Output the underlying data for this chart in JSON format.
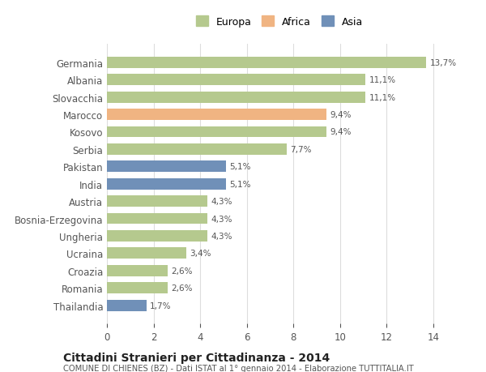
{
  "categories": [
    "Germania",
    "Albania",
    "Slovacchia",
    "Marocco",
    "Kosovo",
    "Serbia",
    "Pakistan",
    "India",
    "Austria",
    "Bosnia-Erzegovina",
    "Ungheria",
    "Ucraina",
    "Croazia",
    "Romania",
    "Thailandia"
  ],
  "values": [
    13.7,
    11.1,
    11.1,
    9.4,
    9.4,
    7.7,
    5.1,
    5.1,
    4.3,
    4.3,
    4.3,
    3.4,
    2.6,
    2.6,
    1.7
  ],
  "labels": [
    "13,7%",
    "11,1%",
    "11,1%",
    "9,4%",
    "9,4%",
    "7,7%",
    "5,1%",
    "5,1%",
    "4,3%",
    "4,3%",
    "4,3%",
    "3,4%",
    "2,6%",
    "2,6%",
    "1,7%"
  ],
  "continents": [
    "Europa",
    "Europa",
    "Europa",
    "Africa",
    "Europa",
    "Europa",
    "Asia",
    "Asia",
    "Europa",
    "Europa",
    "Europa",
    "Europa",
    "Europa",
    "Europa",
    "Asia"
  ],
  "colors": {
    "Europa": "#b5c98e",
    "Africa": "#f0b482",
    "Asia": "#7090b8"
  },
  "title": "Cittadini Stranieri per Cittadinanza - 2014",
  "subtitle": "COMUNE DI CHIENES (BZ) - Dati ISTAT al 1° gennaio 2014 - Elaborazione TUTTITALIA.IT",
  "xlim": [
    0,
    14
  ],
  "xticks": [
    0,
    2,
    4,
    6,
    8,
    10,
    12,
    14
  ],
  "background_color": "#ffffff",
  "grid_color": "#dddddd",
  "bar_height": 0.65
}
